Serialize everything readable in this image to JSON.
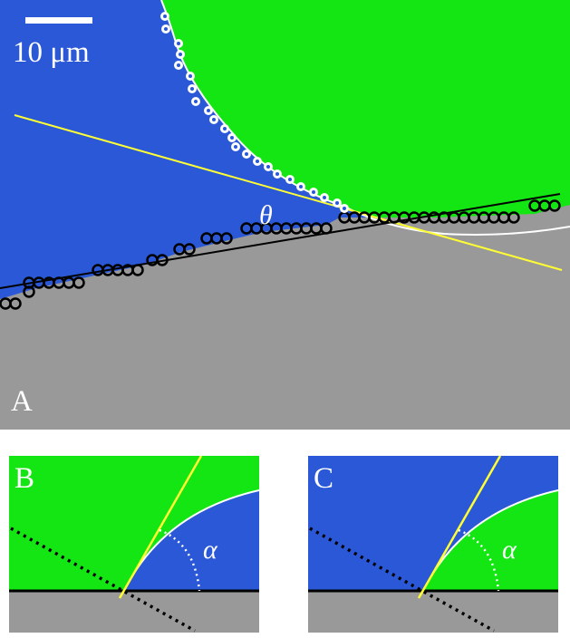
{
  "colors": {
    "blue": "#2a58d6",
    "green": "#14e614",
    "gray": "#999999",
    "yellow": "#ffff33",
    "white": "#ffffff",
    "black": "#000000"
  },
  "panel_a": {
    "label": "A",
    "scale_bar_label": "10 μm",
    "angle_label": "θ"
  },
  "panel_b": {
    "label": "B",
    "angle_label": "α"
  },
  "panel_c": {
    "label": "C",
    "angle_label": "α"
  }
}
